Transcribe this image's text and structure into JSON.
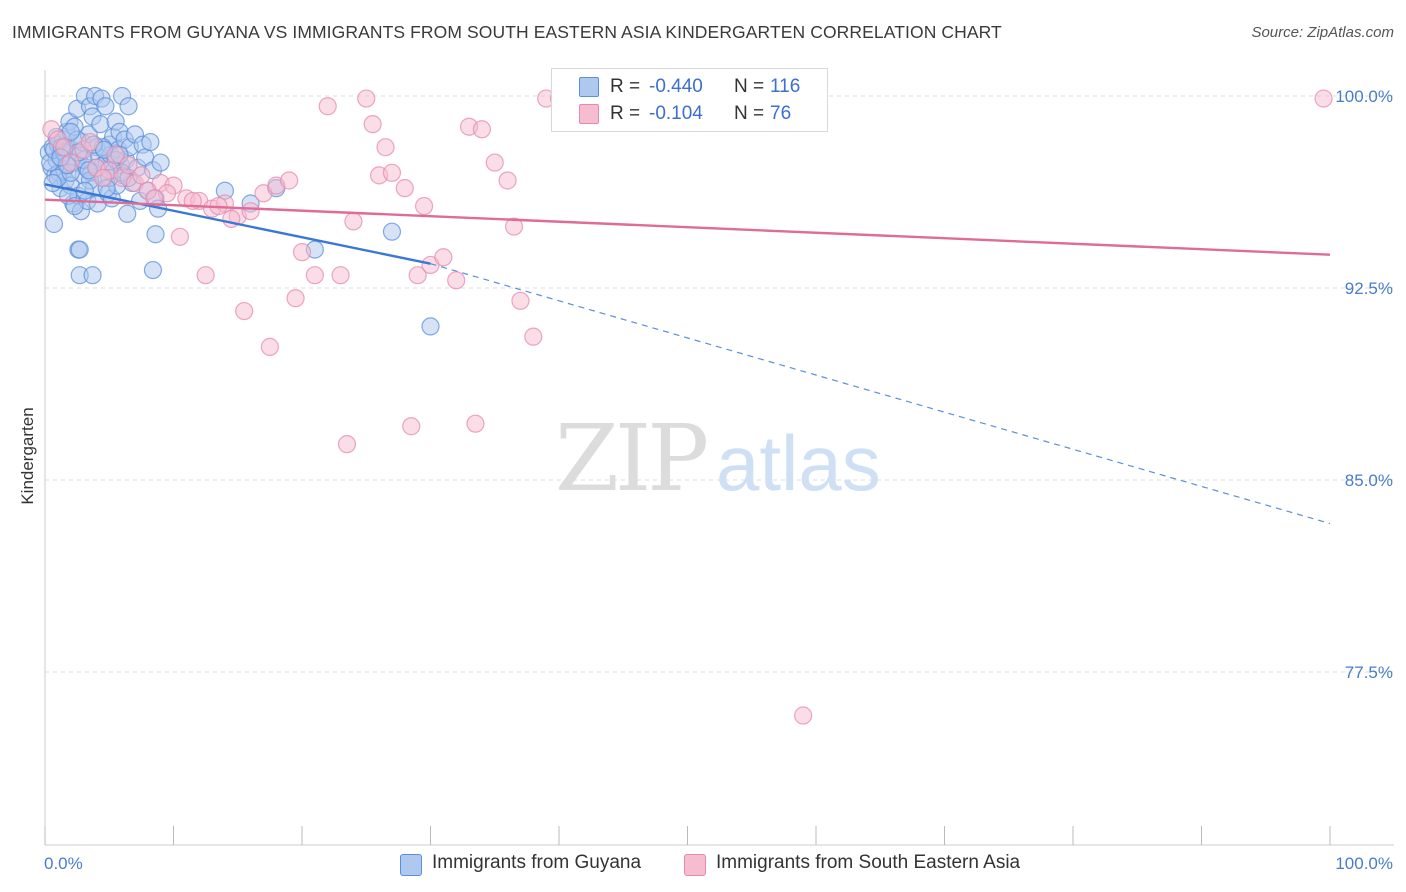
{
  "header": {
    "title": "IMMIGRANTS FROM GUYANA VS IMMIGRANTS FROM SOUTH EASTERN ASIA KINDERGARTEN CORRELATION CHART",
    "source": "Source: ZipAtlas.com"
  },
  "watermark": {
    "zip": "ZIP",
    "atlas": "atlas"
  },
  "stats": [
    {
      "r_label": "R =",
      "r_value": "-0.440",
      "n_label": "N =",
      "n_value": "116",
      "fill": "#aec8f0",
      "stroke": "#5b8fd8"
    },
    {
      "r_label": "R =",
      "r_value": "-0.104",
      "n_label": "N =",
      "n_value": "76",
      "fill": "#f6bcd0",
      "stroke": "#e58aac"
    }
  ],
  "legend": [
    {
      "label": "Immigrants from Guyana",
      "fill": "#aec8f0",
      "stroke": "#5b8fd8"
    },
    {
      "label": "Immigrants from South Eastern Asia",
      "fill": "#f6bcd0",
      "stroke": "#e58aac"
    }
  ],
  "chart_data": {
    "type": "scatter",
    "title": "IMMIGRANTS FROM GUYANA VS IMMIGRANTS FROM SOUTH EASTERN ASIA KINDERGARTEN CORRELATION CHART",
    "xlabel": "",
    "ylabel": "Kindergarten",
    "xlim": [
      0,
      100
    ],
    "ylim": [
      70.0,
      101.0
    ],
    "x_tick_labels": [
      "0.0%",
      "100.0%"
    ],
    "y_ticks": [
      {
        "value": 100.0,
        "label": "100.0%"
      },
      {
        "value": 92.5,
        "label": "92.5%"
      },
      {
        "value": 85.0,
        "label": "85.0%"
      },
      {
        "value": 77.5,
        "label": "77.5%"
      }
    ],
    "grid": "horizontal dashed",
    "series": [
      {
        "name": "Immigrants from Guyana",
        "color": "#5b8fd8",
        "fill": "#aec8f0",
        "trend": {
          "x": [
            0,
            30
          ],
          "y": [
            96.55,
            93.45
          ],
          "extended_x": [
            30,
            100
          ],
          "extended_y": [
            93.45,
            83.3
          ]
        },
        "points": [
          [
            0.3,
            97.8
          ],
          [
            0.5,
            97.2
          ],
          [
            0.6,
            98.0
          ],
          [
            0.8,
            96.9
          ],
          [
            0.9,
            97.5
          ],
          [
            1.0,
            98.1
          ],
          [
            1.1,
            97.0
          ],
          [
            1.2,
            96.4
          ],
          [
            1.3,
            97.6
          ],
          [
            1.4,
            98.3
          ],
          [
            1.5,
            97.1
          ],
          [
            1.6,
            96.7
          ],
          [
            1.7,
            98.6
          ],
          [
            1.8,
            97.3
          ],
          [
            1.9,
            99.0
          ],
          [
            2.0,
            96.5
          ],
          [
            2.1,
            97.9
          ],
          [
            2.2,
            95.8
          ],
          [
            2.3,
            98.8
          ],
          [
            2.4,
            97.4
          ],
          [
            2.5,
            99.5
          ],
          [
            2.6,
            96.1
          ],
          [
            2.7,
            97.7
          ],
          [
            2.8,
            95.5
          ],
          [
            2.9,
            98.2
          ],
          [
            3.0,
            96.9
          ],
          [
            3.1,
            100.0
          ],
          [
            3.2,
            97.2
          ],
          [
            3.3,
            95.9
          ],
          [
            3.4,
            98.5
          ],
          [
            3.5,
            99.6
          ],
          [
            3.6,
            97.0
          ],
          [
            3.7,
            99.2
          ],
          [
            3.8,
            96.4
          ],
          [
            3.9,
            100.0
          ],
          [
            4.0,
            98.0
          ],
          [
            4.1,
            95.8
          ],
          [
            4.2,
            97.6
          ],
          [
            4.3,
            98.9
          ],
          [
            4.4,
            99.9
          ],
          [
            4.5,
            97.3
          ],
          [
            4.6,
            96.8
          ],
          [
            4.7,
            99.6
          ],
          [
            4.8,
            97.4
          ],
          [
            4.9,
            96.2
          ],
          [
            5.0,
            98.1
          ],
          [
            5.1,
            97.7
          ],
          [
            5.2,
            96.0
          ],
          [
            5.3,
            98.4
          ],
          [
            5.4,
            97.1
          ],
          [
            5.5,
            99.0
          ],
          [
            5.6,
            96.5
          ],
          [
            5.7,
            97.9
          ],
          [
            5.8,
            98.6
          ],
          [
            5.9,
            97.3
          ],
          [
            6.0,
            100.0
          ],
          [
            6.1,
            96.9
          ],
          [
            6.2,
            98.3
          ],
          [
            6.3,
            97.5
          ],
          [
            6.4,
            95.4
          ],
          [
            6.5,
            99.6
          ],
          [
            6.6,
            98.0
          ],
          [
            6.8,
            96.6
          ],
          [
            7.0,
            98.5
          ],
          [
            7.2,
            97.2
          ],
          [
            7.4,
            95.9
          ],
          [
            7.6,
            98.1
          ],
          [
            7.8,
            97.6
          ],
          [
            8.0,
            96.3
          ],
          [
            8.2,
            98.2
          ],
          [
            8.4,
            97.1
          ],
          [
            8.6,
            96.0
          ],
          [
            8.8,
            95.6
          ],
          [
            9.0,
            97.4
          ],
          [
            0.4,
            97.4
          ],
          [
            0.7,
            97.9
          ],
          [
            1.0,
            96.8
          ],
          [
            1.5,
            97.8
          ],
          [
            2.0,
            97.0
          ],
          [
            2.5,
            98.3
          ],
          [
            3.0,
            97.5
          ],
          [
            3.5,
            96.7
          ],
          [
            4.0,
            97.2
          ],
          [
            4.5,
            98.0
          ],
          [
            5.0,
            96.8
          ],
          [
            5.5,
            97.5
          ],
          [
            6.0,
            97.0
          ],
          [
            6.5,
            96.8
          ],
          [
            1.8,
            96.1
          ],
          [
            2.3,
            95.7
          ],
          [
            3.1,
            96.3
          ],
          [
            0.9,
            98.4
          ],
          [
            1.3,
            98.0
          ],
          [
            0.6,
            96.6
          ],
          [
            1.7,
            97.3
          ],
          [
            2.6,
            97.8
          ],
          [
            3.8,
            98.1
          ],
          [
            4.6,
            97.9
          ],
          [
            5.8,
            97.7
          ],
          [
            0.7,
            95.0
          ],
          [
            2.6,
            94.0
          ],
          [
            2.7,
            94.0
          ],
          [
            8.6,
            94.6
          ],
          [
            8.4,
            93.2
          ],
          [
            2.7,
            93.0
          ],
          [
            3.7,
            93.0
          ],
          [
            14.0,
            96.3
          ],
          [
            16.0,
            95.8
          ],
          [
            18.0,
            96.4
          ],
          [
            21.0,
            94.0
          ],
          [
            27.0,
            94.7
          ],
          [
            30.0,
            91.0
          ],
          [
            1.2,
            97.6
          ],
          [
            2.0,
            98.6
          ],
          [
            3.4,
            97.1
          ],
          [
            4.8,
            96.4
          ]
        ]
      },
      {
        "name": "Immigrants from South Eastern Asia",
        "color": "#e58aac",
        "fill": "#f6bcd0",
        "trend": {
          "x": [
            0,
            100
          ],
          "y": [
            95.95,
            93.8
          ]
        },
        "points": [
          [
            0.5,
            98.7
          ],
          [
            1.0,
            98.3
          ],
          [
            1.5,
            98.0
          ],
          [
            2.0,
            97.4
          ],
          [
            3.0,
            97.9
          ],
          [
            4.0,
            97.2
          ],
          [
            5.0,
            97.1
          ],
          [
            6.0,
            96.8
          ],
          [
            7.0,
            96.6
          ],
          [
            8.0,
            96.3
          ],
          [
            9.0,
            96.6
          ],
          [
            10.0,
            96.5
          ],
          [
            11.0,
            96.0
          ],
          [
            12.0,
            95.9
          ],
          [
            13.0,
            95.6
          ],
          [
            14.0,
            95.8
          ],
          [
            15.0,
            95.3
          ],
          [
            16.0,
            95.5
          ],
          [
            17.0,
            96.2
          ],
          [
            18.0,
            96.5
          ],
          [
            19.0,
            96.7
          ],
          [
            20.0,
            93.9
          ],
          [
            21.0,
            93.0
          ],
          [
            22.0,
            99.6
          ],
          [
            23.0,
            93.0
          ],
          [
            24.0,
            95.1
          ],
          [
            25.0,
            99.9
          ],
          [
            26.0,
            96.9
          ],
          [
            27.0,
            97.0
          ],
          [
            28.0,
            96.4
          ],
          [
            29.0,
            93.0
          ],
          [
            30.0,
            93.4
          ],
          [
            31.0,
            93.7
          ],
          [
            32.0,
            92.8
          ],
          [
            33.0,
            98.8
          ],
          [
            34.0,
            98.7
          ],
          [
            35.0,
            97.4
          ],
          [
            36.0,
            96.7
          ],
          [
            37.0,
            92.0
          ],
          [
            38.0,
            90.6
          ],
          [
            39.0,
            99.9
          ],
          [
            40.0,
            99.9
          ],
          [
            41.0,
            99.8
          ],
          [
            42.0,
            100.0
          ],
          [
            43.0,
            99.9
          ],
          [
            44.0,
            99.9
          ],
          [
            45.0,
            99.8
          ],
          [
            46.0,
            99.9
          ],
          [
            47.0,
            100.0
          ],
          [
            48.0,
            99.9
          ],
          [
            49.0,
            100.0
          ],
          [
            50.0,
            99.9
          ],
          [
            3.5,
            98.2
          ],
          [
            5.5,
            97.7
          ],
          [
            6.5,
            97.3
          ],
          [
            7.5,
            96.9
          ],
          [
            9.5,
            96.2
          ],
          [
            10.5,
            94.5
          ],
          [
            12.5,
            93.0
          ],
          [
            15.5,
            91.6
          ],
          [
            17.5,
            90.2
          ],
          [
            19.5,
            92.1
          ],
          [
            23.5,
            86.4
          ],
          [
            25.5,
            98.9
          ],
          [
            26.5,
            98.0
          ],
          [
            28.5,
            87.1
          ],
          [
            29.5,
            95.7
          ],
          [
            33.5,
            87.2
          ],
          [
            36.5,
            94.9
          ],
          [
            59.0,
            75.8
          ],
          [
            4.5,
            96.8
          ],
          [
            8.5,
            96.0
          ],
          [
            11.5,
            95.9
          ],
          [
            13.5,
            95.7
          ],
          [
            14.5,
            95.2
          ],
          [
            99.5,
            99.9
          ]
        ]
      }
    ]
  }
}
